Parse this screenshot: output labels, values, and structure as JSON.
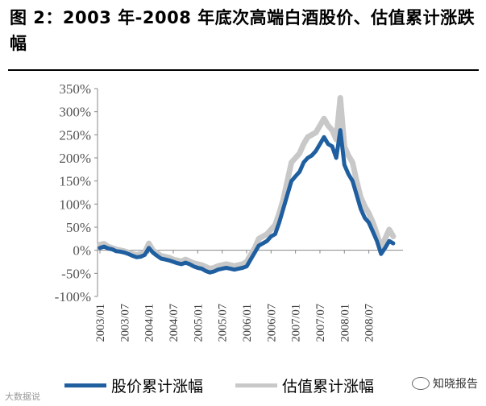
{
  "figure": {
    "title": "图 2：2003 年-2008 年底次高端白酒股价、估值累计涨跌幅"
  },
  "chart_data": {
    "type": "line",
    "title": "图 2：2003 年-2008 年底次高端白酒股价、估值累计涨跌幅",
    "xlabel": "",
    "ylabel": "",
    "ylim": [
      -100,
      350
    ],
    "y_ticks": [
      "350%",
      "300%",
      "250%",
      "200%",
      "150%",
      "100%",
      "50%",
      "0%",
      "-50%",
      "-100%"
    ],
    "x_ticks": [
      "2003/01",
      "2003/07",
      "2004/01",
      "2004/07",
      "2005/01",
      "2005/07",
      "2006/01",
      "2006/07",
      "2007/01",
      "2007/07",
      "2008/01",
      "2008/07"
    ],
    "x_range": [
      0,
      73
    ],
    "legend_position": "bottom",
    "series": [
      {
        "name": "股价累计涨幅",
        "color": "#1f5fa0",
        "x": [
          0,
          1,
          2,
          3,
          4,
          5,
          6,
          7,
          8,
          9,
          10,
          11,
          12,
          13,
          14,
          15,
          16,
          17,
          18,
          19,
          20,
          21,
          22,
          23,
          24,
          25,
          26,
          27,
          28,
          29,
          30,
          31,
          32,
          33,
          34,
          35,
          36,
          37,
          38,
          39,
          40,
          41,
          42,
          43,
          44,
          45,
          46,
          47,
          48,
          49,
          50,
          51,
          52,
          53,
          54,
          55,
          56,
          57,
          58,
          59,
          60,
          61,
          62,
          63,
          64,
          65,
          66,
          67,
          68,
          69,
          70,
          71,
          72
        ],
        "values": [
          5,
          8,
          4,
          2,
          -2,
          -3,
          -5,
          -8,
          -12,
          -15,
          -14,
          -10,
          5,
          -5,
          -12,
          -18,
          -20,
          -22,
          -25,
          -28,
          -30,
          -27,
          -30,
          -35,
          -38,
          -40,
          -45,
          -48,
          -46,
          -42,
          -40,
          -38,
          -40,
          -42,
          -40,
          -38,
          -35,
          -20,
          -5,
          10,
          15,
          20,
          30,
          35,
          60,
          90,
          120,
          150,
          160,
          170,
          190,
          200,
          205,
          215,
          230,
          245,
          230,
          225,
          200,
          260,
          185,
          165,
          150,
          120,
          90,
          70,
          60,
          40,
          20,
          -8,
          5,
          20,
          15
        ]
      },
      {
        "name": "估值累计涨幅",
        "color": "#c8c8c8",
        "x": [
          0,
          1,
          2,
          3,
          4,
          5,
          6,
          7,
          8,
          9,
          10,
          11,
          12,
          13,
          14,
          15,
          16,
          17,
          18,
          19,
          20,
          21,
          22,
          23,
          24,
          25,
          26,
          27,
          28,
          29,
          30,
          31,
          32,
          33,
          34,
          35,
          36,
          37,
          38,
          39,
          40,
          41,
          42,
          43,
          44,
          45,
          46,
          47,
          48,
          49,
          50,
          51,
          52,
          53,
          54,
          55,
          56,
          57,
          58,
          59,
          60,
          61,
          62,
          63,
          64,
          65,
          66,
          67,
          68,
          69,
          70,
          71,
          72
        ],
        "values": [
          12,
          14,
          8,
          5,
          2,
          0,
          -2,
          -5,
          -8,
          -10,
          -8,
          -5,
          15,
          0,
          -6,
          -12,
          -14,
          -16,
          -20,
          -22,
          -24,
          -20,
          -24,
          -28,
          -30,
          -32,
          -36,
          -40,
          -38,
          -34,
          -32,
          -30,
          -32,
          -34,
          -32,
          -30,
          -25,
          -10,
          5,
          25,
          30,
          35,
          45,
          55,
          80,
          110,
          150,
          190,
          200,
          210,
          230,
          245,
          250,
          255,
          270,
          285,
          270,
          260,
          240,
          330,
          225,
          205,
          190,
          150,
          115,
          95,
          80,
          60,
          35,
          5,
          25,
          45,
          30
        ]
      }
    ]
  },
  "legend": {
    "items": [
      {
        "label": "股价累计涨幅",
        "color": "#1f5fa0"
      },
      {
        "label": "估值累计涨幅",
        "color": "#c8c8c8"
      }
    ]
  },
  "watermark": {
    "right": "知晓报告",
    "left": "大数据说"
  }
}
